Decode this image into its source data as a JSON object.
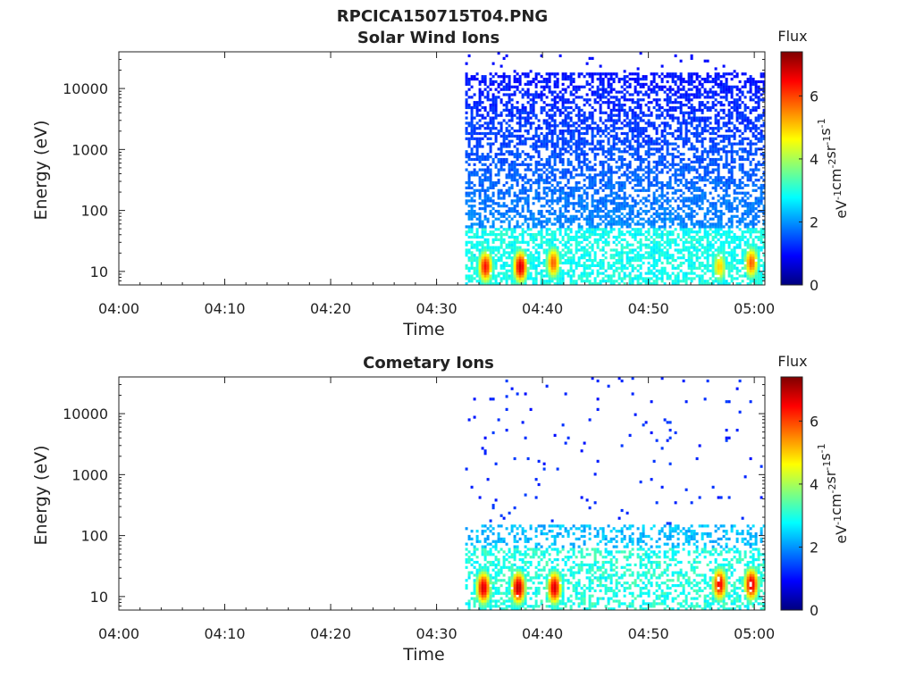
{
  "figure_title": "RPCICA150715T04.PNG",
  "colorbar_gradient": [
    "#00007f",
    "#0000ff",
    "#007fff",
    "#00ffff",
    "#7fff7f",
    "#ffff00",
    "#ff7f00",
    "#ff0000",
    "#7f0000"
  ],
  "chart_data": [
    {
      "type": "heatmap",
      "title": "Solar Wind Ions",
      "xlabel": "Time",
      "ylabel": "Energy (eV)",
      "x_ticks": [
        "04:00",
        "04:10",
        "04:20",
        "04:30",
        "04:40",
        "04:50",
        "05:00"
      ],
      "x_tick_minutes": [
        0,
        10,
        20,
        30,
        40,
        50,
        60
      ],
      "x_range_minutes": [
        0,
        61
      ],
      "y_scale": "log",
      "y_ticks": [
        "10",
        "100",
        "1000",
        "10000"
      ],
      "y_tick_values": [
        10,
        100,
        1000,
        10000
      ],
      "y_range": [
        6,
        40000
      ],
      "data_start_minute": 32.7,
      "colorbar": {
        "label": "Flux",
        "units": "eV-1cm-2sr-1s-1",
        "ticks": [
          "0",
          "2",
          "4",
          "6"
        ],
        "tick_values": [
          0,
          2,
          4,
          6
        ],
        "range": [
          0,
          7.4
        ]
      },
      "hotspots": [
        {
          "time_minute": 34.5,
          "energy_ev": 12,
          "flux": 6.4
        },
        {
          "time_minute": 37.8,
          "energy_ev": 12,
          "flux": 6.8
        },
        {
          "time_minute": 40.9,
          "energy_ev": 14,
          "flux": 5.8
        },
        {
          "time_minute": 56.6,
          "energy_ev": 12,
          "flux": 5.0
        },
        {
          "time_minute": 59.6,
          "energy_ev": 14,
          "flux": 5.8
        }
      ]
    },
    {
      "type": "heatmap",
      "title": "Cometary Ions",
      "xlabel": "Time",
      "ylabel": "Energy (eV)",
      "x_ticks": [
        "04:00",
        "04:10",
        "04:20",
        "04:30",
        "04:40",
        "04:50",
        "05:00"
      ],
      "x_tick_minutes": [
        0,
        10,
        20,
        30,
        40,
        50,
        60
      ],
      "x_range_minutes": [
        0,
        61
      ],
      "y_scale": "log",
      "y_ticks": [
        "10",
        "100",
        "1000",
        "10000"
      ],
      "y_tick_values": [
        10,
        100,
        1000,
        10000
      ],
      "y_range": [
        6,
        40000
      ],
      "data_start_minute": 32.7,
      "colorbar": {
        "label": "Flux",
        "units": "eV-1cm-2sr-1s-1",
        "ticks": [
          "0",
          "2",
          "4",
          "6"
        ],
        "tick_values": [
          0,
          2,
          4,
          6
        ],
        "range": [
          0,
          7.4
        ]
      },
      "hotspots": [
        {
          "time_minute": 34.3,
          "energy_ev": 14,
          "flux": 6.8
        },
        {
          "time_minute": 37.6,
          "energy_ev": 14,
          "flux": 7.0
        },
        {
          "time_minute": 41.0,
          "energy_ev": 14,
          "flux": 6.8
        },
        {
          "time_minute": 56.6,
          "energy_ev": 16,
          "flux": 6.6
        },
        {
          "time_minute": 59.6,
          "energy_ev": 16,
          "flux": 6.8
        }
      ]
    }
  ]
}
